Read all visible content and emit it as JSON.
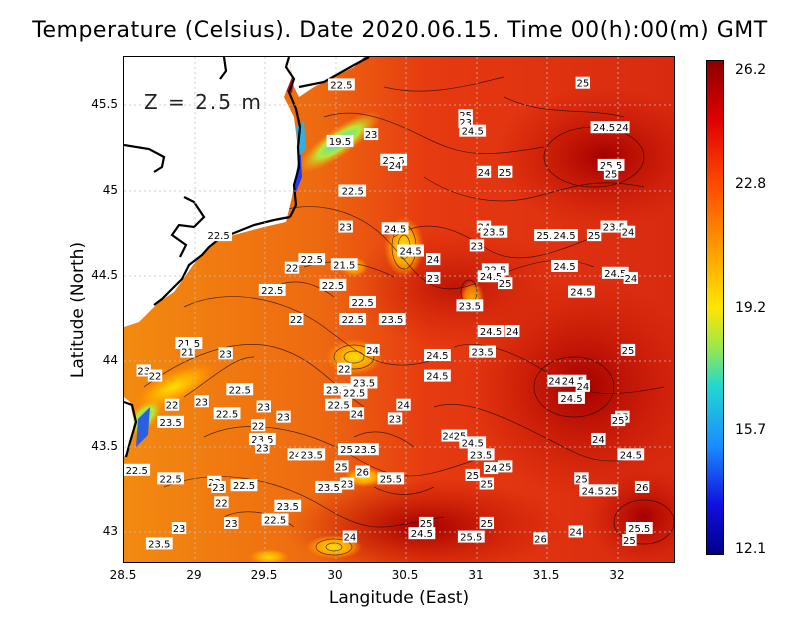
{
  "title": "Temperature (Celsius). Date 2020.06.15. Time 00(h):00(m)  GMT",
  "depth_label": "Z = 2.5 m",
  "x_axis": {
    "label": "Langitude (East)",
    "ticks": [
      "28.5",
      "29",
      "29.5",
      "30",
      "30.5",
      "31",
      "31.5",
      "32"
    ]
  },
  "y_axis": {
    "label": "Latitude (North)",
    "ticks": [
      "45.5",
      "45",
      "44.5",
      "44",
      "43.5",
      "43"
    ]
  },
  "colorbar": {
    "labels": [
      "26.2",
      "22.8",
      "19.2",
      "15.7",
      "12.1"
    ],
    "min": 12.1,
    "max": 26.2
  },
  "contour_labels": [
    {
      "t": "22.5",
      "lon": 30.04,
      "lat": 45.62
    },
    {
      "t": "25",
      "lon": 31.75,
      "lat": 45.63
    },
    {
      "t": "25",
      "lon": 30.92,
      "lat": 45.44
    },
    {
      "t": "23",
      "lon": 30.92,
      "lat": 45.4
    },
    {
      "t": "24.5",
      "lon": 30.97,
      "lat": 45.35
    },
    {
      "t": "24.5",
      "lon": 31.9,
      "lat": 45.37
    },
    {
      "t": "24",
      "lon": 32.03,
      "lat": 45.37
    },
    {
      "t": "23",
      "lon": 30.25,
      "lat": 45.33
    },
    {
      "t": "19.5",
      "lon": 30.03,
      "lat": 45.29
    },
    {
      "t": "23.5",
      "lon": 30.41,
      "lat": 45.18
    },
    {
      "t": "24",
      "lon": 30.42,
      "lat": 45.15
    },
    {
      "t": "25.5",
      "lon": 31.95,
      "lat": 45.15
    },
    {
      "t": "25",
      "lon": 31.95,
      "lat": 45.1
    },
    {
      "t": "24",
      "lon": 31.05,
      "lat": 45.11
    },
    {
      "t": "25",
      "lon": 31.2,
      "lat": 45.11
    },
    {
      "t": "23",
      "lon": 30.07,
      "lat": 45.0
    },
    {
      "t": "22.5",
      "lon": 30.12,
      "lat": 45.0
    },
    {
      "t": "24.5",
      "lon": 30.42,
      "lat": 44.78
    },
    {
      "t": "23",
      "lon": 30.07,
      "lat": 44.79
    },
    {
      "t": "22.5",
      "lon": 29.17,
      "lat": 44.74
    },
    {
      "t": "24",
      "lon": 31.05,
      "lat": 44.79
    },
    {
      "t": "23.5",
      "lon": 31.12,
      "lat": 44.76
    },
    {
      "t": "25.5",
      "lon": 31.5,
      "lat": 44.74
    },
    {
      "t": "24.5",
      "lon": 31.62,
      "lat": 44.74
    },
    {
      "t": "25",
      "lon": 31.83,
      "lat": 44.74
    },
    {
      "t": "23.5",
      "lon": 31.97,
      "lat": 44.79
    },
    {
      "t": "24",
      "lon": 32.07,
      "lat": 44.76
    },
    {
      "t": "23",
      "lon": 31.0,
      "lat": 44.68
    },
    {
      "t": "24.5",
      "lon": 30.53,
      "lat": 44.65
    },
    {
      "t": "24",
      "lon": 30.69,
      "lat": 44.6
    },
    {
      "t": "22.5",
      "lon": 29.83,
      "lat": 44.6
    },
    {
      "t": "21.5",
      "lon": 30.06,
      "lat": 44.57
    },
    {
      "t": "22",
      "lon": 29.69,
      "lat": 44.55
    },
    {
      "t": "22.5",
      "lon": 31.13,
      "lat": 44.54
    },
    {
      "t": "24.5",
      "lon": 31.1,
      "lat": 44.5
    },
    {
      "t": "24.5",
      "lon": 31.62,
      "lat": 44.56
    },
    {
      "t": "24.5",
      "lon": 31.98,
      "lat": 44.52
    },
    {
      "t": "24",
      "lon": 32.09,
      "lat": 44.49
    },
    {
      "t": "23",
      "lon": 30.69,
      "lat": 44.49
    },
    {
      "t": "25",
      "lon": 31.2,
      "lat": 44.46
    },
    {
      "t": "22.5",
      "lon": 29.98,
      "lat": 44.45
    },
    {
      "t": "22.5",
      "lon": 29.55,
      "lat": 44.42
    },
    {
      "t": "24.5",
      "lon": 31.74,
      "lat": 44.41
    },
    {
      "t": "22.5",
      "lon": 30.19,
      "lat": 44.35
    },
    {
      "t": "23.5",
      "lon": 30.95,
      "lat": 44.33
    },
    {
      "t": "22",
      "lon": 29.72,
      "lat": 44.25
    },
    {
      "t": "22.5",
      "lon": 30.12,
      "lat": 44.25
    },
    {
      "t": "23.5",
      "lon": 30.4,
      "lat": 44.25
    },
    {
      "t": "24.5",
      "lon": 31.1,
      "lat": 44.18
    },
    {
      "t": "24",
      "lon": 31.25,
      "lat": 44.18
    },
    {
      "t": "21.5",
      "lon": 28.96,
      "lat": 44.11
    },
    {
      "t": "21",
      "lon": 28.95,
      "lat": 44.06
    },
    {
      "t": "23",
      "lon": 29.22,
      "lat": 44.05
    },
    {
      "t": "24",
      "lon": 30.26,
      "lat": 44.07
    },
    {
      "t": "24.5",
      "lon": 30.72,
      "lat": 44.04
    },
    {
      "t": "23.5",
      "lon": 31.04,
      "lat": 44.06
    },
    {
      "t": "25",
      "lon": 32.07,
      "lat": 44.07
    },
    {
      "t": "22",
      "lon": 30.06,
      "lat": 43.96
    },
    {
      "t": "23",
      "lon": 28.64,
      "lat": 43.95
    },
    {
      "t": "22",
      "lon": 28.72,
      "lat": 43.92
    },
    {
      "t": "24.5",
      "lon": 30.72,
      "lat": 43.92
    },
    {
      "t": "23.5",
      "lon": 30.2,
      "lat": 43.88
    },
    {
      "t": "24",
      "lon": 31.55,
      "lat": 43.89
    },
    {
      "t": "24.5",
      "lon": 31.68,
      "lat": 43.89
    },
    {
      "t": "24",
      "lon": 31.75,
      "lat": 43.86
    },
    {
      "t": "22.5",
      "lon": 29.32,
      "lat": 43.84
    },
    {
      "t": "23.5",
      "lon": 30.01,
      "lat": 43.84
    },
    {
      "t": "22.5",
      "lon": 30.13,
      "lat": 43.82
    },
    {
      "t": "24.5",
      "lon": 31.67,
      "lat": 43.79
    },
    {
      "t": "22",
      "lon": 28.84,
      "lat": 43.75
    },
    {
      "t": "23",
      "lon": 29.05,
      "lat": 43.77
    },
    {
      "t": "23",
      "lon": 29.49,
      "lat": 43.74
    },
    {
      "t": "22.5",
      "lon": 30.02,
      "lat": 43.75
    },
    {
      "t": "24",
      "lon": 30.48,
      "lat": 43.75
    },
    {
      "t": "22.5",
      "lon": 29.23,
      "lat": 43.7
    },
    {
      "t": "23",
      "lon": 29.63,
      "lat": 43.68
    },
    {
      "t": "24",
      "lon": 30.15,
      "lat": 43.7
    },
    {
      "t": "23",
      "lon": 30.42,
      "lat": 43.67
    },
    {
      "t": "23.5",
      "lon": 28.83,
      "lat": 43.65
    },
    {
      "t": "22",
      "lon": 29.45,
      "lat": 43.63
    },
    {
      "t": "25",
      "lon": 32.03,
      "lat": 43.68
    },
    {
      "t": "25",
      "lon": 32.0,
      "lat": 43.66
    },
    {
      "t": "24",
      "lon": 30.8,
      "lat": 43.57
    },
    {
      "t": "25",
      "lon": 30.88,
      "lat": 43.57
    },
    {
      "t": "23.5",
      "lon": 29.48,
      "lat": 43.55
    },
    {
      "t": "24",
      "lon": 31.86,
      "lat": 43.55
    },
    {
      "t": "24.5",
      "lon": 30.97,
      "lat": 43.53
    },
    {
      "t": "23",
      "lon": 29.48,
      "lat": 43.5
    },
    {
      "t": "25.5",
      "lon": 30.11,
      "lat": 43.49
    },
    {
      "t": "23.5",
      "lon": 30.21,
      "lat": 43.49
    },
    {
      "t": "24",
      "lon": 29.71,
      "lat": 43.46
    },
    {
      "t": "23.5",
      "lon": 29.83,
      "lat": 43.46
    },
    {
      "t": "23.5",
      "lon": 31.03,
      "lat": 43.46
    },
    {
      "t": "24.5",
      "lon": 32.09,
      "lat": 43.46
    },
    {
      "t": "25",
      "lon": 30.04,
      "lat": 43.39
    },
    {
      "t": "24",
      "lon": 31.1,
      "lat": 43.38
    },
    {
      "t": "25",
      "lon": 31.2,
      "lat": 43.39
    },
    {
      "t": "22.5",
      "lon": 28.59,
      "lat": 43.37
    },
    {
      "t": "26",
      "lon": 30.19,
      "lat": 43.36
    },
    {
      "t": "25.5",
      "lon": 30.39,
      "lat": 43.32
    },
    {
      "t": "25",
      "lon": 30.97,
      "lat": 43.34
    },
    {
      "t": "22.5",
      "lon": 28.83,
      "lat": 43.32
    },
    {
      "t": "25",
      "lon": 31.74,
      "lat": 43.32
    },
    {
      "t": "23",
      "lon": 29.14,
      "lat": 43.3
    },
    {
      "t": "23",
      "lon": 29.17,
      "lat": 43.27
    },
    {
      "t": "22.5",
      "lon": 29.35,
      "lat": 43.28
    },
    {
      "t": "23.5",
      "lon": 29.95,
      "lat": 43.27
    },
    {
      "t": "23",
      "lon": 30.08,
      "lat": 43.29
    },
    {
      "t": "25",
      "lon": 31.07,
      "lat": 43.29
    },
    {
      "t": "24.5",
      "lon": 31.82,
      "lat": 43.25
    },
    {
      "t": "25",
      "lon": 31.95,
      "lat": 43.25
    },
    {
      "t": "26",
      "lon": 32.17,
      "lat": 43.27
    },
    {
      "t": "22",
      "lon": 29.19,
      "lat": 43.18
    },
    {
      "t": "23.5",
      "lon": 29.66,
      "lat": 43.16
    },
    {
      "t": "22.5",
      "lon": 29.57,
      "lat": 43.08
    },
    {
      "t": "23",
      "lon": 29.26,
      "lat": 43.06
    },
    {
      "t": "23",
      "lon": 28.89,
      "lat": 43.03
    },
    {
      "t": "25",
      "lon": 30.64,
      "lat": 43.06
    },
    {
      "t": "25",
      "lon": 31.07,
      "lat": 43.06
    },
    {
      "t": "25.5",
      "lon": 32.15,
      "lat": 43.03
    },
    {
      "t": "24.5",
      "lon": 30.61,
      "lat": 43.0
    },
    {
      "t": "24",
      "lon": 31.7,
      "lat": 43.01
    },
    {
      "t": "24",
      "lon": 30.1,
      "lat": 42.98
    },
    {
      "t": "25.5",
      "lon": 30.96,
      "lat": 42.98
    },
    {
      "t": "26",
      "lon": 31.45,
      "lat": 42.97
    },
    {
      "t": "25",
      "lon": 32.08,
      "lat": 42.96
    },
    {
      "t": "23.5",
      "lon": 28.75,
      "lat": 42.94
    }
  ]
}
